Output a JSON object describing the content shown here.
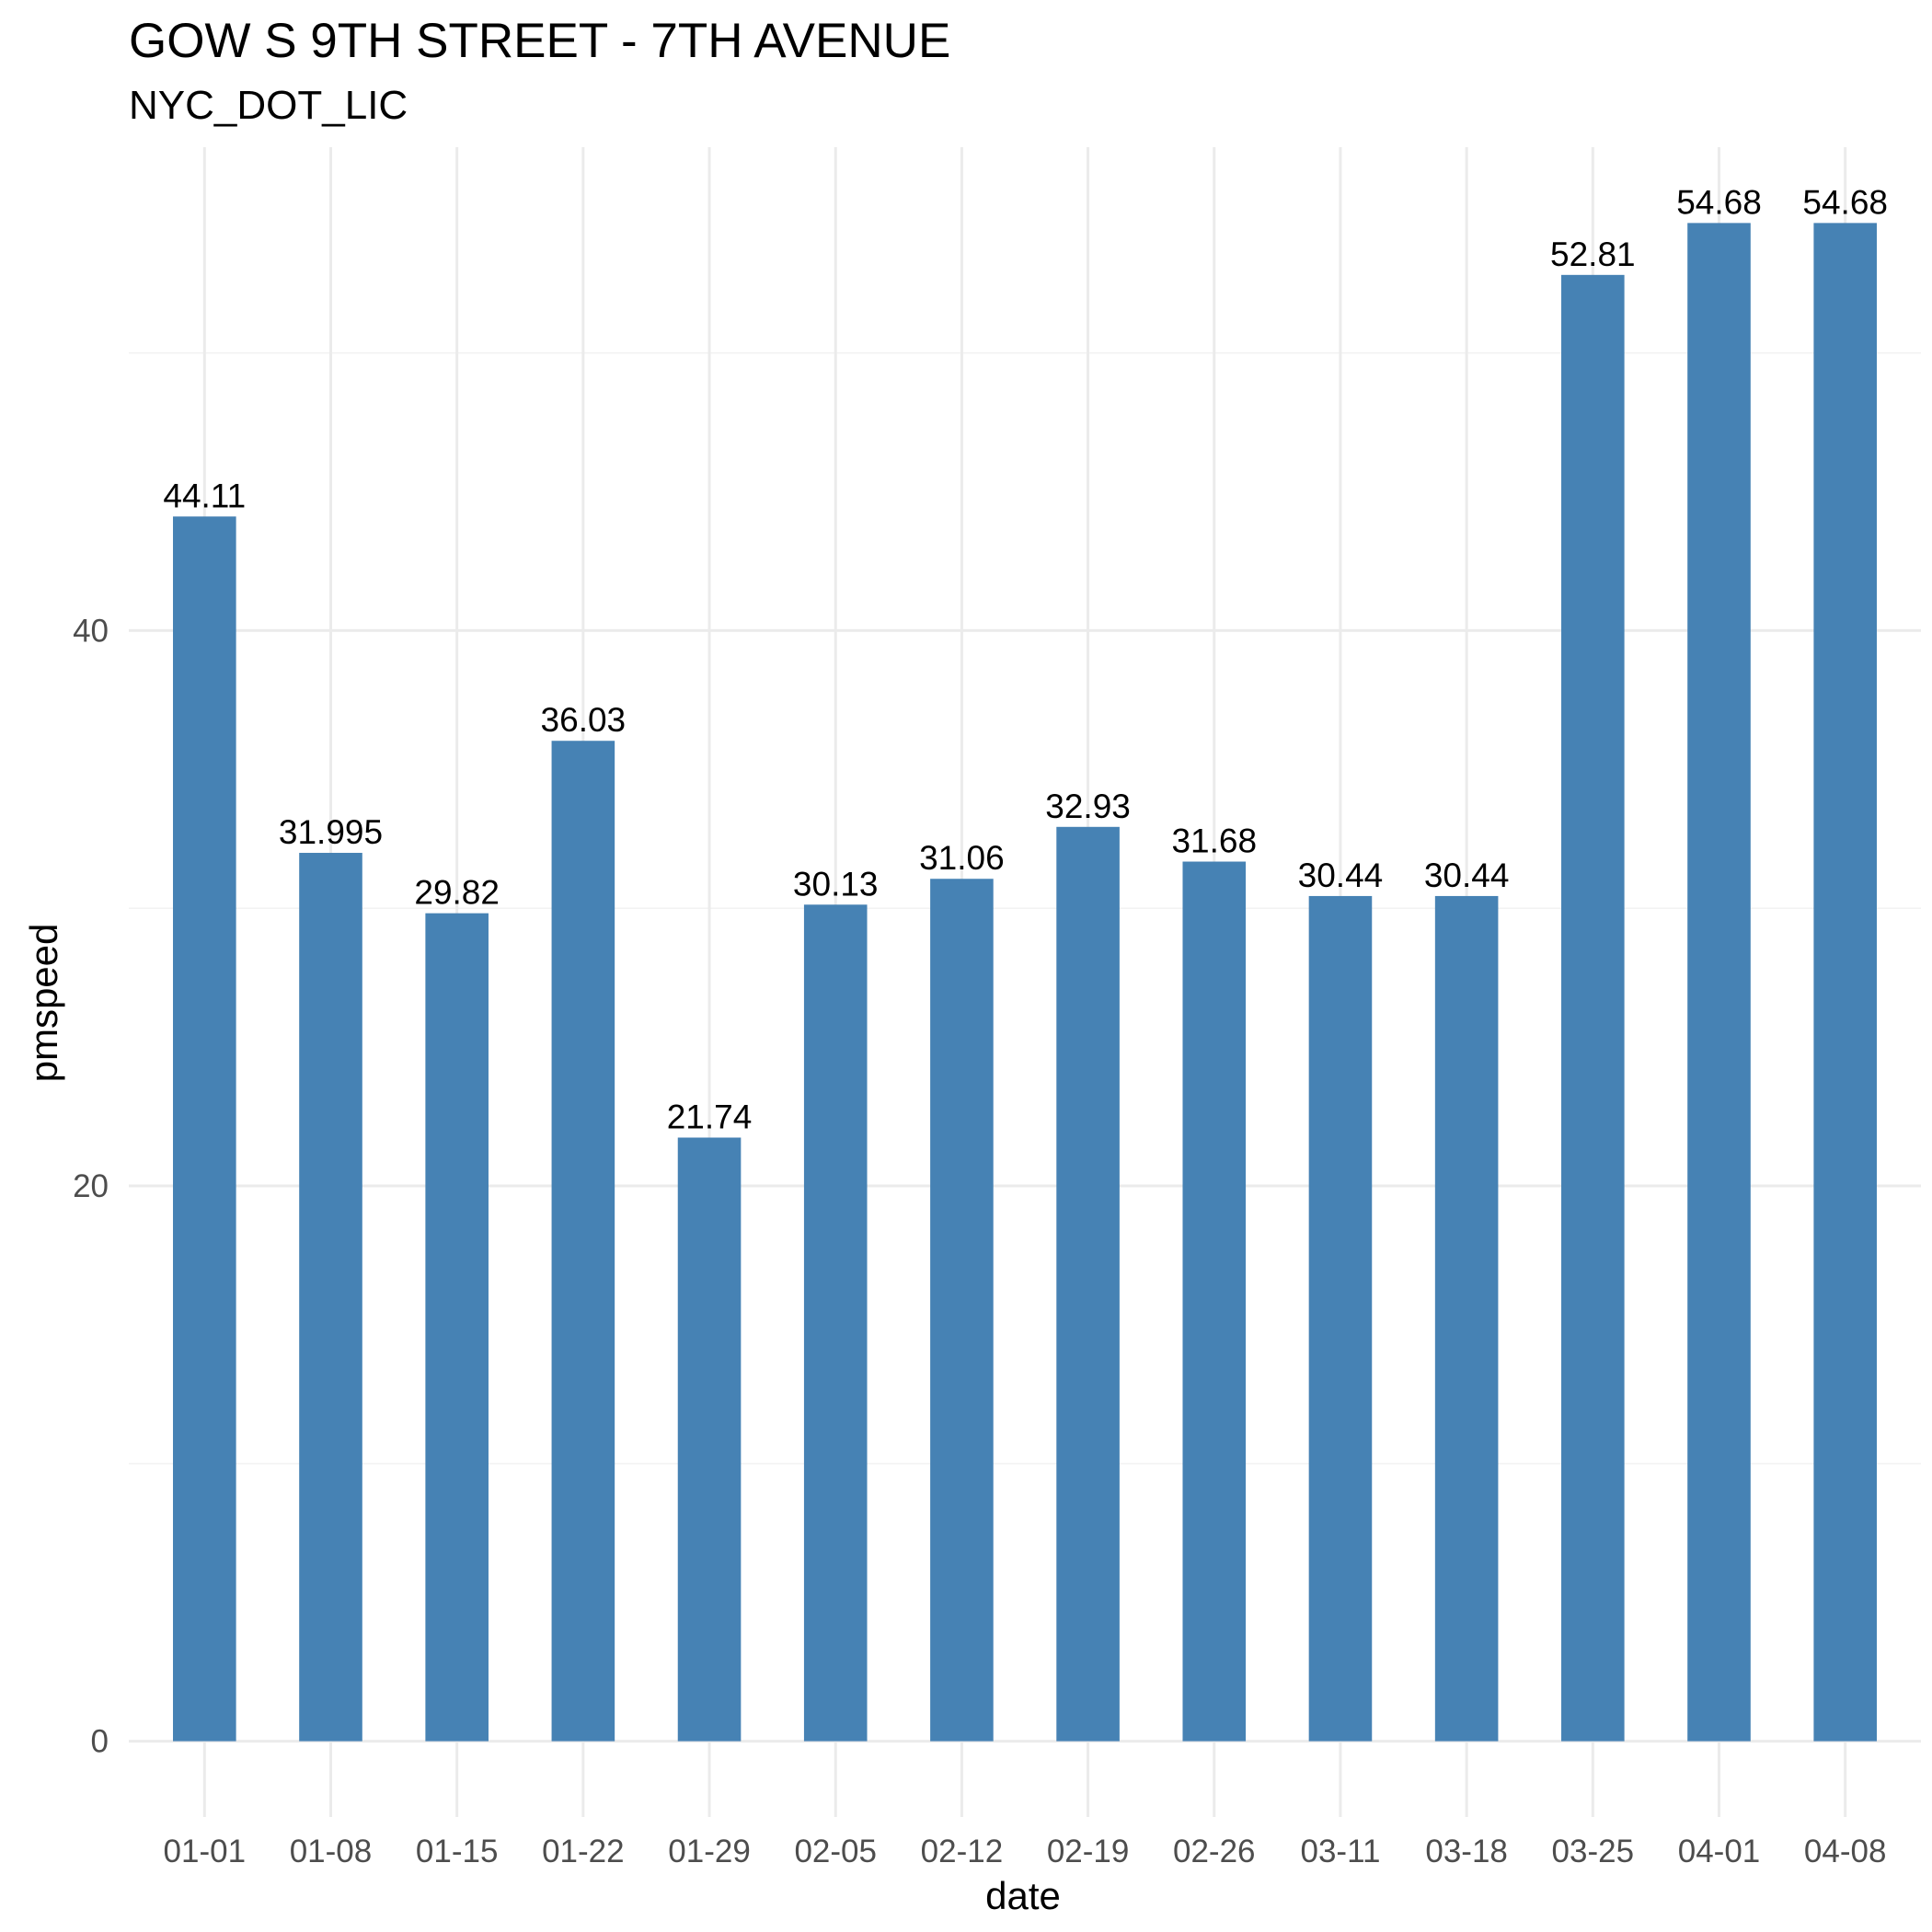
{
  "chart_data": {
    "type": "bar",
    "title": "GOW S 9TH STREET - 7TH AVENUE",
    "subtitle": "NYC_DOT_LIC",
    "xlabel": "date",
    "ylabel": "pmspeed",
    "categories": [
      "01-01",
      "01-08",
      "01-15",
      "01-22",
      "01-29",
      "02-05",
      "02-12",
      "02-19",
      "02-26",
      "03-11",
      "03-18",
      "03-25",
      "04-01",
      "04-08"
    ],
    "values": [
      44.11,
      31.995,
      29.82,
      36.03,
      21.74,
      30.13,
      31.06,
      32.93,
      31.68,
      30.44,
      30.44,
      52.81,
      54.68,
      54.68
    ],
    "data_labels": [
      "44.11",
      "31.995",
      "29.82",
      "36.03",
      "21.74",
      "30.13",
      "31.06",
      "32.93",
      "31.68",
      "30.44",
      "30.44",
      "52.81",
      "54.68",
      "54.68"
    ],
    "yticks": [
      0,
      20,
      40
    ],
    "ylim": [
      -2.73,
      57.41
    ],
    "grid": true,
    "bar_color": "#4682b4"
  }
}
